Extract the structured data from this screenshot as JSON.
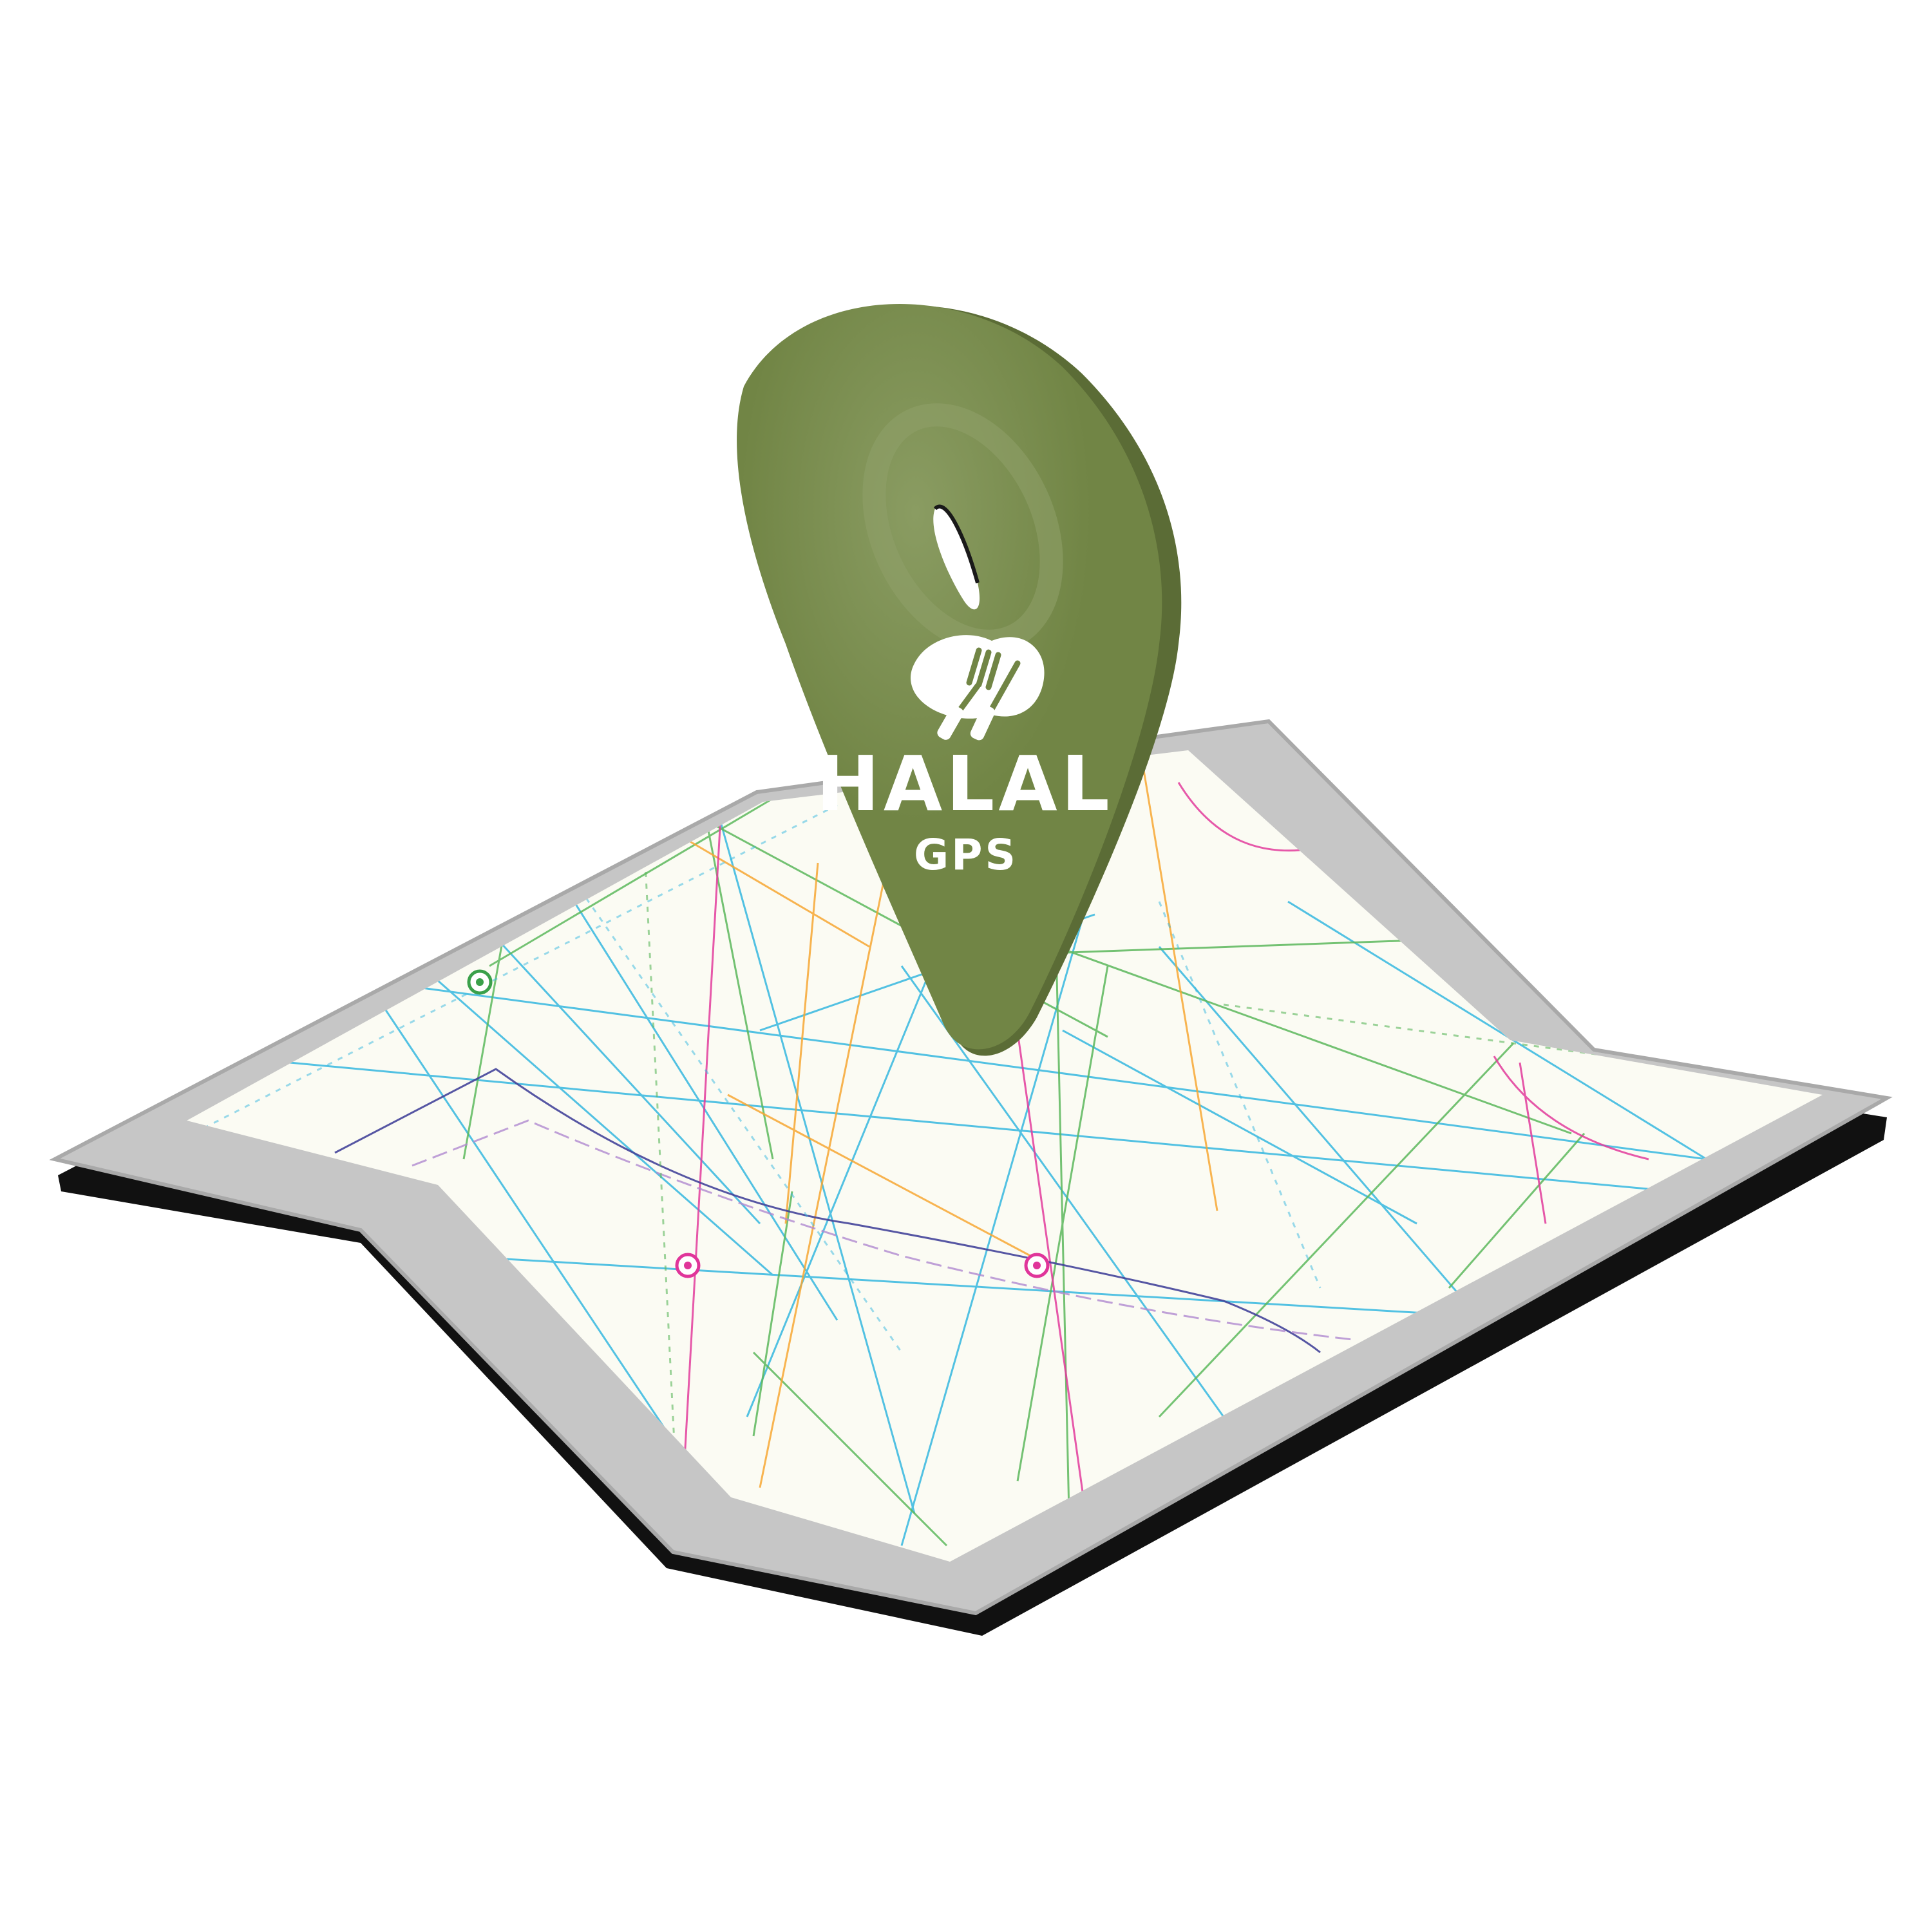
{
  "logo": {
    "word": "HALAL",
    "subword": "GPS",
    "icon": "food-cutlery-icon"
  },
  "colors": {
    "pin": "#718545",
    "pin_highlight": "#8a9c62",
    "pin_shadow": "#5b6c36",
    "map_frame": "#c6c6c6",
    "map_frame_edge": "#a9a9a9",
    "map_base": "#111111",
    "map_paper": "#fbfbf3",
    "line_cyan": "#35b8e0",
    "line_green": "#5cb85c",
    "line_orange": "#f7a733",
    "line_magenta": "#e23b9b",
    "line_navy": "#44449a",
    "line_lavender": "#b08ad0"
  },
  "map_markers": [
    {
      "name": "map-marker-green",
      "color": "#3aa04a"
    },
    {
      "name": "map-marker-magenta-left",
      "color": "#e0359a"
    },
    {
      "name": "map-marker-magenta-right",
      "color": "#e0359a"
    }
  ]
}
